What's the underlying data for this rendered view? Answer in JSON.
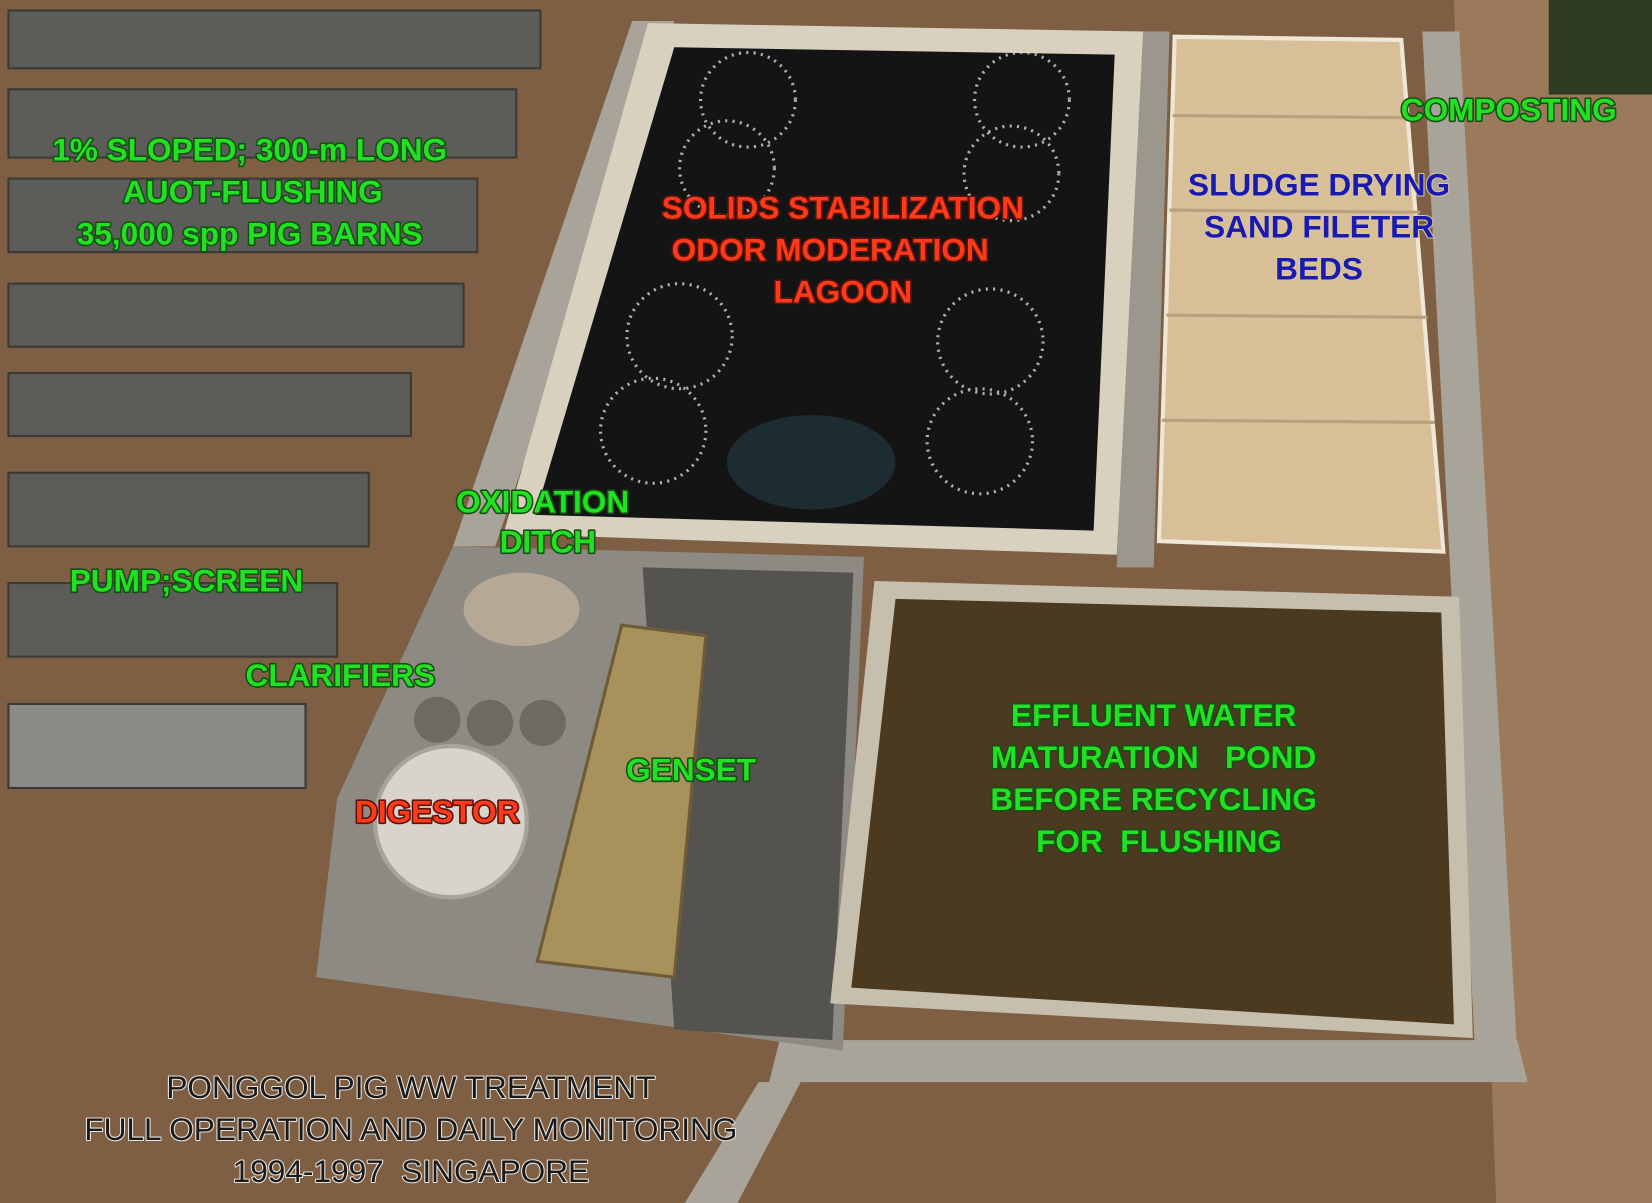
{
  "labels": [
    {
      "lines": [
        "1% SLOPED; 300-m LONG",
        "AUOT-FLUSHING",
        "35,000 spp PIG BARNS"
      ]
    },
    {
      "lines": [
        "COMPOSTING"
      ]
    },
    {
      "lines": [
        "SOLIDS STABILIZATION",
        "ODOR MODERATION",
        "LAGOON"
      ]
    },
    {
      "lines": [
        "SLUDGE DRYING",
        "SAND FILETER",
        "BEDS"
      ]
    },
    {
      "lines": [
        "OXIDATION",
        "DITCH"
      ]
    },
    {
      "lines": [
        "PUMP;SCREEN"
      ]
    },
    {
      "lines": [
        "CLARIFIERS"
      ]
    },
    {
      "lines": [
        "GENSET"
      ]
    },
    {
      "lines": [
        "DIGESTOR"
      ]
    },
    {
      "lines": [
        "EFFLUENT WATER",
        "MATURATION   POND",
        "BEFORE RECYCLING",
        "FOR  FLUSHING"
      ]
    },
    {
      "lines": [
        "PONGGOL PIG WW TREATMENT",
        "FULL OPERATION AND DAILY MONITORING",
        "1994-1997  SINGAPORE"
      ]
    }
  ]
}
